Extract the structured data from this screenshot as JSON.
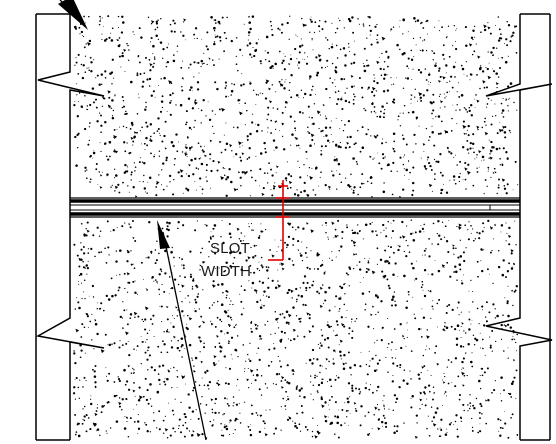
{
  "annotations": {
    "slot_label_line1": "SLOT",
    "slot_label_line2": "WIDTH"
  },
  "colors": {
    "line": "#000000",
    "dimension": "#e00000",
    "background": "#ffffff"
  },
  "features": [
    "concrete-section",
    "break-lines",
    "slot",
    "leader-arrow",
    "slot-width-dimension"
  ]
}
